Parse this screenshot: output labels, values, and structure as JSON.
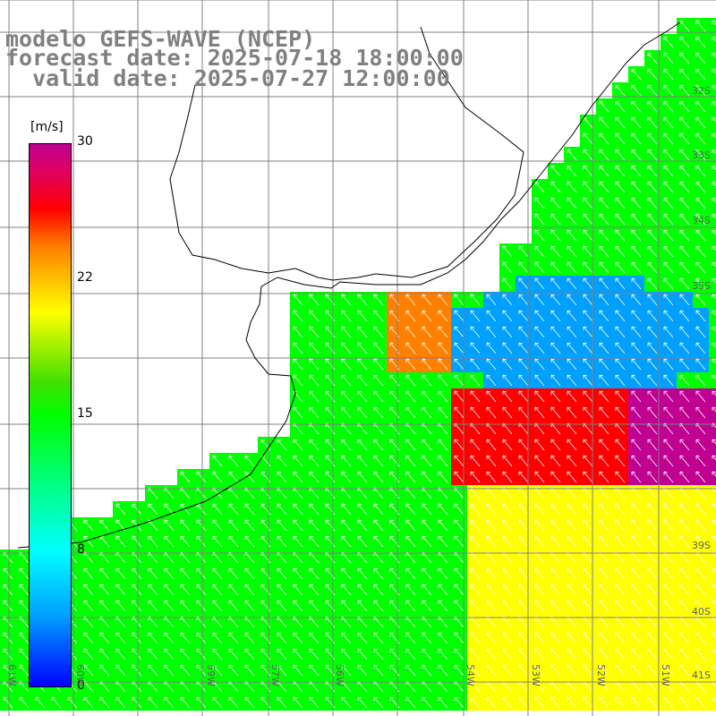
{
  "title": {
    "model": "modelo GEFS-WAVE (NCEP)",
    "forecast": "forecast date: 2025-07-18 18:00:00",
    "valid": "  valid date: 2025-07-27 12:00:00"
  },
  "colorbar": {
    "unit": "[m/s]",
    "ticks": [
      "30",
      "22",
      "15",
      "8",
      "0"
    ],
    "colors": [
      "#0000ff",
      "#00a0ff",
      "#00ffff",
      "#00ff00",
      "#ffff00",
      "#ff8000",
      "#ff0000",
      "#c00090"
    ]
  },
  "lat_labels": [
    "32S",
    "33S",
    "34S",
    "35S",
    "39S",
    "40S",
    "41S"
  ],
  "lon_labels": [
    "61W",
    "60W",
    "59W",
    "57W",
    "56W",
    "54W",
    "53W",
    "52W",
    "51W"
  ],
  "chart_data": {
    "type": "heatmap",
    "variable": "wind speed",
    "unit": "m/s",
    "value_range": [
      0,
      30
    ],
    "vectors": "wind arrows"
  }
}
